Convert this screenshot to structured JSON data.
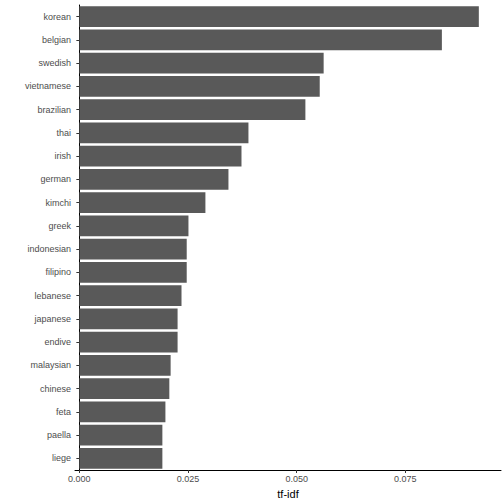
{
  "chart_data": {
    "type": "bar",
    "orientation": "horizontal",
    "x_label": "tf-idf",
    "categories": [
      "korean",
      "belgian",
      "swedish",
      "vietnamese",
      "brazilian",
      "thai",
      "irish",
      "german",
      "kimchi",
      "greek",
      "indonesian",
      "filipino",
      "lebanese",
      "japanese",
      "endive",
      "malaysian",
      "chinese",
      "feta",
      "paella",
      "liege"
    ],
    "values": [
      0.0919,
      0.0834,
      0.0562,
      0.0553,
      0.052,
      0.0389,
      0.0373,
      0.0343,
      0.029,
      0.0251,
      0.0247,
      0.0247,
      0.0235,
      0.0226,
      0.0226,
      0.021,
      0.0207,
      0.0198,
      0.0191,
      0.0191
    ],
    "color": "#595959",
    "xlim": [
      -0.001,
      0.097
    ],
    "xticks": [
      {
        "value": 0,
        "label": "0.000"
      },
      {
        "value": 0.025,
        "label": "0.025"
      },
      {
        "value": 0.05,
        "label": "0.050"
      },
      {
        "value": 0.075,
        "label": "0.075"
      }
    ],
    "grid": false
  }
}
